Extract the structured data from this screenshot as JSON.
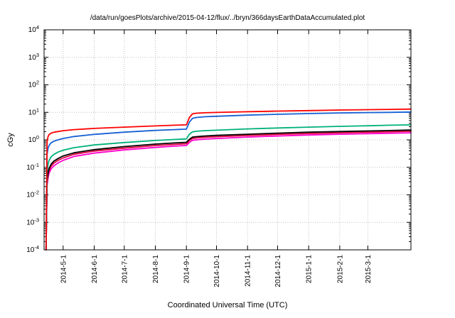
{
  "chart_data": {
    "type": "line",
    "title": "/data/run/goesPlots/archive/2015-04-12/flux/../bryn/366daysEarthDataAccumulated.plot",
    "xlabel": "Coordinated Universal Time (UTC)",
    "ylabel": "cGy",
    "y_scale": "log",
    "ylim": [
      0.0001,
      10000
    ],
    "y_tick_exponents": [
      -4,
      -3,
      -2,
      -1,
      0,
      1,
      2,
      3,
      4
    ],
    "x_days_range": [
      0,
      366
    ],
    "x_ticks": [
      {
        "label": "2014-5-1",
        "day": 19
      },
      {
        "label": "2014-6-1",
        "day": 50
      },
      {
        "label": "2014-7-1",
        "day": 80
      },
      {
        "label": "2014-8-1",
        "day": 111
      },
      {
        "label": "2014-9-1",
        "day": 142
      },
      {
        "label": "2014-10-1",
        "day": 172
      },
      {
        "label": "2014-11-1",
        "day": 203
      },
      {
        "label": "2014-12-1",
        "day": 233
      },
      {
        "label": "2015-1-1",
        "day": 264
      },
      {
        "label": "2015-2-1",
        "day": 295
      },
      {
        "label": "2015-3-1",
        "day": 323
      }
    ],
    "grid": true,
    "grid_color": "#c0c0c0",
    "frame_color": "#000000",
    "legend": "none",
    "series": [
      {
        "name": "series-red",
        "color": "#ff0000",
        "points": [
          [
            2,
            0.0001
          ],
          [
            3,
            0.9
          ],
          [
            4,
            1.3
          ],
          [
            5,
            1.55
          ],
          [
            7,
            1.75
          ],
          [
            10,
            1.9
          ],
          [
            14,
            2.0
          ],
          [
            19,
            2.15
          ],
          [
            30,
            2.35
          ],
          [
            50,
            2.6
          ],
          [
            80,
            2.9
          ],
          [
            111,
            3.2
          ],
          [
            130,
            3.4
          ],
          [
            142,
            3.5
          ],
          [
            145,
            6.5
          ],
          [
            148,
            8.8
          ],
          [
            152,
            9.3
          ],
          [
            160,
            9.6
          ],
          [
            172,
            9.9
          ],
          [
            203,
            10.5
          ],
          [
            233,
            11.1
          ],
          [
            264,
            11.6
          ],
          [
            295,
            12.1
          ],
          [
            323,
            12.5
          ],
          [
            345,
            12.8
          ],
          [
            366,
            13.1
          ]
        ]
      },
      {
        "name": "series-blue",
        "color": "#1560d4",
        "points": [
          [
            2,
            0.0001
          ],
          [
            3,
            0.3
          ],
          [
            4,
            0.5
          ],
          [
            5,
            0.62
          ],
          [
            7,
            0.78
          ],
          [
            10,
            0.9
          ],
          [
            14,
            1.0
          ],
          [
            19,
            1.12
          ],
          [
            30,
            1.32
          ],
          [
            50,
            1.58
          ],
          [
            80,
            1.9
          ],
          [
            111,
            2.2
          ],
          [
            130,
            2.35
          ],
          [
            142,
            2.45
          ],
          [
            145,
            4.4
          ],
          [
            148,
            6.0
          ],
          [
            152,
            6.5
          ],
          [
            160,
            6.9
          ],
          [
            172,
            7.2
          ],
          [
            203,
            7.9
          ],
          [
            233,
            8.5
          ],
          [
            264,
            9.0
          ],
          [
            295,
            9.5
          ],
          [
            323,
            9.8
          ],
          [
            345,
            10.0
          ],
          [
            366,
            10.3
          ]
        ]
      },
      {
        "name": "series-green",
        "color": "#00b07a",
        "points": [
          [
            2,
            0.0001
          ],
          [
            3,
            0.07
          ],
          [
            4,
            0.13
          ],
          [
            5,
            0.18
          ],
          [
            7,
            0.24
          ],
          [
            10,
            0.3
          ],
          [
            14,
            0.36
          ],
          [
            19,
            0.42
          ],
          [
            30,
            0.52
          ],
          [
            50,
            0.65
          ],
          [
            80,
            0.8
          ],
          [
            111,
            0.95
          ],
          [
            130,
            1.03
          ],
          [
            142,
            1.08
          ],
          [
            145,
            1.6
          ],
          [
            148,
            1.95
          ],
          [
            152,
            2.05
          ],
          [
            160,
            2.15
          ],
          [
            172,
            2.25
          ],
          [
            203,
            2.5
          ],
          [
            233,
            2.7
          ],
          [
            264,
            2.9
          ],
          [
            295,
            3.1
          ],
          [
            323,
            3.25
          ],
          [
            345,
            3.4
          ],
          [
            366,
            3.5
          ]
        ]
      },
      {
        "name": "series-black",
        "color": "#000000",
        "points": [
          [
            2,
            0.0001
          ],
          [
            3,
            0.035
          ],
          [
            4,
            0.065
          ],
          [
            5,
            0.09
          ],
          [
            7,
            0.13
          ],
          [
            10,
            0.17
          ],
          [
            14,
            0.21
          ],
          [
            19,
            0.26
          ],
          [
            30,
            0.34
          ],
          [
            50,
            0.44
          ],
          [
            80,
            0.57
          ],
          [
            111,
            0.7
          ],
          [
            130,
            0.77
          ],
          [
            142,
            0.81
          ],
          [
            145,
            1.05
          ],
          [
            148,
            1.25
          ],
          [
            152,
            1.31
          ],
          [
            160,
            1.38
          ],
          [
            172,
            1.45
          ],
          [
            203,
            1.6
          ],
          [
            233,
            1.75
          ],
          [
            264,
            1.9
          ],
          [
            295,
            2.0
          ],
          [
            323,
            2.1
          ],
          [
            345,
            2.18
          ],
          [
            366,
            2.27
          ]
        ]
      },
      {
        "name": "series-crimson",
        "color": "#e00040",
        "points": [
          [
            2,
            0.0001
          ],
          [
            3,
            0.028
          ],
          [
            4,
            0.055
          ],
          [
            5,
            0.077
          ],
          [
            7,
            0.11
          ],
          [
            10,
            0.145
          ],
          [
            14,
            0.18
          ],
          [
            19,
            0.22
          ],
          [
            30,
            0.3
          ],
          [
            50,
            0.39
          ],
          [
            80,
            0.5
          ],
          [
            111,
            0.62
          ],
          [
            130,
            0.68
          ],
          [
            142,
            0.72
          ],
          [
            145,
            0.94
          ],
          [
            148,
            1.12
          ],
          [
            152,
            1.17
          ],
          [
            160,
            1.24
          ],
          [
            172,
            1.3
          ],
          [
            203,
            1.44
          ],
          [
            233,
            1.57
          ],
          [
            264,
            1.7
          ],
          [
            295,
            1.8
          ],
          [
            323,
            1.9
          ],
          [
            345,
            1.97
          ],
          [
            366,
            2.05
          ]
        ]
      },
      {
        "name": "series-magenta",
        "color": "#ff00cc",
        "points": [
          [
            2,
            0.0001
          ],
          [
            3,
            0.022
          ],
          [
            4,
            0.042
          ],
          [
            5,
            0.06
          ],
          [
            7,
            0.088
          ],
          [
            10,
            0.115
          ],
          [
            14,
            0.145
          ],
          [
            19,
            0.18
          ],
          [
            30,
            0.25
          ],
          [
            50,
            0.33
          ],
          [
            80,
            0.43
          ],
          [
            111,
            0.53
          ],
          [
            130,
            0.59
          ],
          [
            142,
            0.62
          ],
          [
            145,
            0.8
          ],
          [
            148,
            0.96
          ],
          [
            152,
            1.0
          ],
          [
            160,
            1.06
          ],
          [
            172,
            1.12
          ],
          [
            203,
            1.26
          ],
          [
            233,
            1.38
          ],
          [
            264,
            1.5
          ],
          [
            295,
            1.6
          ],
          [
            323,
            1.68
          ],
          [
            345,
            1.74
          ],
          [
            366,
            1.8
          ]
        ]
      }
    ]
  }
}
